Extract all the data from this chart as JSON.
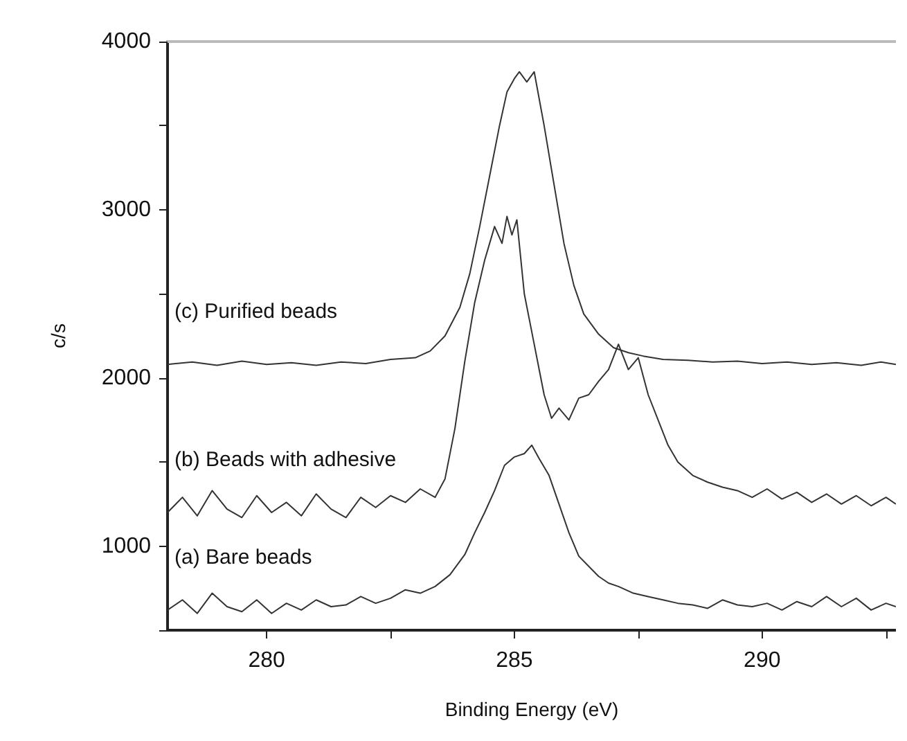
{
  "chart_data": {
    "type": "line",
    "xlabel": "Binding Energy (eV)",
    "ylabel": "c/s",
    "xlim": [
      278,
      292.7
    ],
    "ylim": [
      500,
      4000
    ],
    "xticks": [
      280,
      {
        "value": 282.5,
        "label": null
      },
      285,
      {
        "value": 287.5,
        "label": null
      },
      290,
      {
        "value": 292.5,
        "label": null
      }
    ],
    "yticks": [
      {
        "value": 500,
        "label": null
      },
      1000,
      {
        "value": 1500,
        "label": null
      },
      2000,
      {
        "value": 2500,
        "label": null
      },
      3000,
      {
        "value": 3500,
        "label": null
      },
      4000
    ],
    "grid": false,
    "legend": false,
    "marker": "none",
    "line_style": "solid",
    "series": [
      {
        "name": "(c) Purified beads",
        "color": "#333333",
        "x": [
          278,
          278.5,
          279,
          279.5,
          280,
          280.5,
          281,
          281.5,
          282,
          282.5,
          283,
          283.3,
          283.6,
          283.9,
          284.1,
          284.3,
          284.5,
          284.7,
          284.85,
          285,
          285.1,
          285.25,
          285.4,
          285.6,
          285.8,
          286,
          286.2,
          286.4,
          286.7,
          287,
          287.3,
          287.6,
          288,
          288.5,
          289,
          289.5,
          290,
          290.5,
          291,
          291.5,
          292,
          292.4,
          292.7
        ],
        "values": [
          2080,
          2095,
          2075,
          2100,
          2080,
          2090,
          2075,
          2095,
          2085,
          2110,
          2120,
          2160,
          2250,
          2420,
          2620,
          2900,
          3200,
          3500,
          3700,
          3780,
          3820,
          3760,
          3820,
          3500,
          3150,
          2800,
          2550,
          2380,
          2260,
          2180,
          2150,
          2130,
          2110,
          2105,
          2095,
          2100,
          2085,
          2095,
          2080,
          2090,
          2075,
          2095,
          2080
        ]
      },
      {
        "name": "(b) Beads with adhesive",
        "color": "#333333",
        "x": [
          278,
          278.3,
          278.6,
          278.9,
          279.2,
          279.5,
          279.8,
          280.1,
          280.4,
          280.7,
          281,
          281.3,
          281.6,
          281.9,
          282.2,
          282.5,
          282.8,
          283.1,
          283.4,
          283.6,
          283.8,
          284,
          284.2,
          284.4,
          284.6,
          284.75,
          284.85,
          284.95,
          285.05,
          285.2,
          285.4,
          285.6,
          285.75,
          285.9,
          286.1,
          286.3,
          286.5,
          286.7,
          286.9,
          287.1,
          287.3,
          287.5,
          287.7,
          287.9,
          288.1,
          288.3,
          288.6,
          288.9,
          289.2,
          289.5,
          289.8,
          290.1,
          290.4,
          290.7,
          291,
          291.3,
          291.6,
          291.9,
          292.2,
          292.5,
          292.7
        ],
        "values": [
          1200,
          1290,
          1180,
          1330,
          1220,
          1170,
          1300,
          1200,
          1260,
          1180,
          1310,
          1220,
          1170,
          1290,
          1230,
          1300,
          1260,
          1340,
          1290,
          1400,
          1700,
          2100,
          2450,
          2700,
          2900,
          2800,
          2960,
          2850,
          2940,
          2500,
          2200,
          1900,
          1760,
          1820,
          1750,
          1880,
          1900,
          1980,
          2050,
          2200,
          2050,
          2120,
          1900,
          1750,
          1600,
          1500,
          1420,
          1380,
          1350,
          1330,
          1290,
          1340,
          1280,
          1320,
          1260,
          1310,
          1250,
          1300,
          1240,
          1290,
          1250
        ]
      },
      {
        "name": "(a) Bare beads",
        "color": "#333333",
        "x": [
          278,
          278.3,
          278.6,
          278.9,
          279.2,
          279.5,
          279.8,
          280.1,
          280.4,
          280.7,
          281,
          281.3,
          281.6,
          281.9,
          282.2,
          282.5,
          282.8,
          283.1,
          283.4,
          283.7,
          284,
          284.2,
          284.4,
          284.6,
          284.8,
          285,
          285.2,
          285.35,
          285.5,
          285.7,
          285.9,
          286.1,
          286.3,
          286.5,
          286.7,
          286.9,
          287.1,
          287.4,
          287.7,
          288,
          288.3,
          288.6,
          288.9,
          289.2,
          289.5,
          289.8,
          290.1,
          290.4,
          290.7,
          291,
          291.3,
          291.6,
          291.9,
          292.2,
          292.5,
          292.7
        ],
        "values": [
          620,
          680,
          600,
          720,
          640,
          610,
          680,
          600,
          660,
          620,
          680,
          640,
          650,
          700,
          660,
          690,
          740,
          720,
          760,
          830,
          950,
          1080,
          1200,
          1330,
          1480,
          1530,
          1550,
          1600,
          1520,
          1420,
          1250,
          1080,
          940,
          880,
          820,
          780,
          760,
          720,
          700,
          680,
          660,
          650,
          630,
          680,
          650,
          640,
          660,
          620,
          670,
          640,
          700,
          640,
          690,
          620,
          660,
          640
        ]
      }
    ]
  }
}
